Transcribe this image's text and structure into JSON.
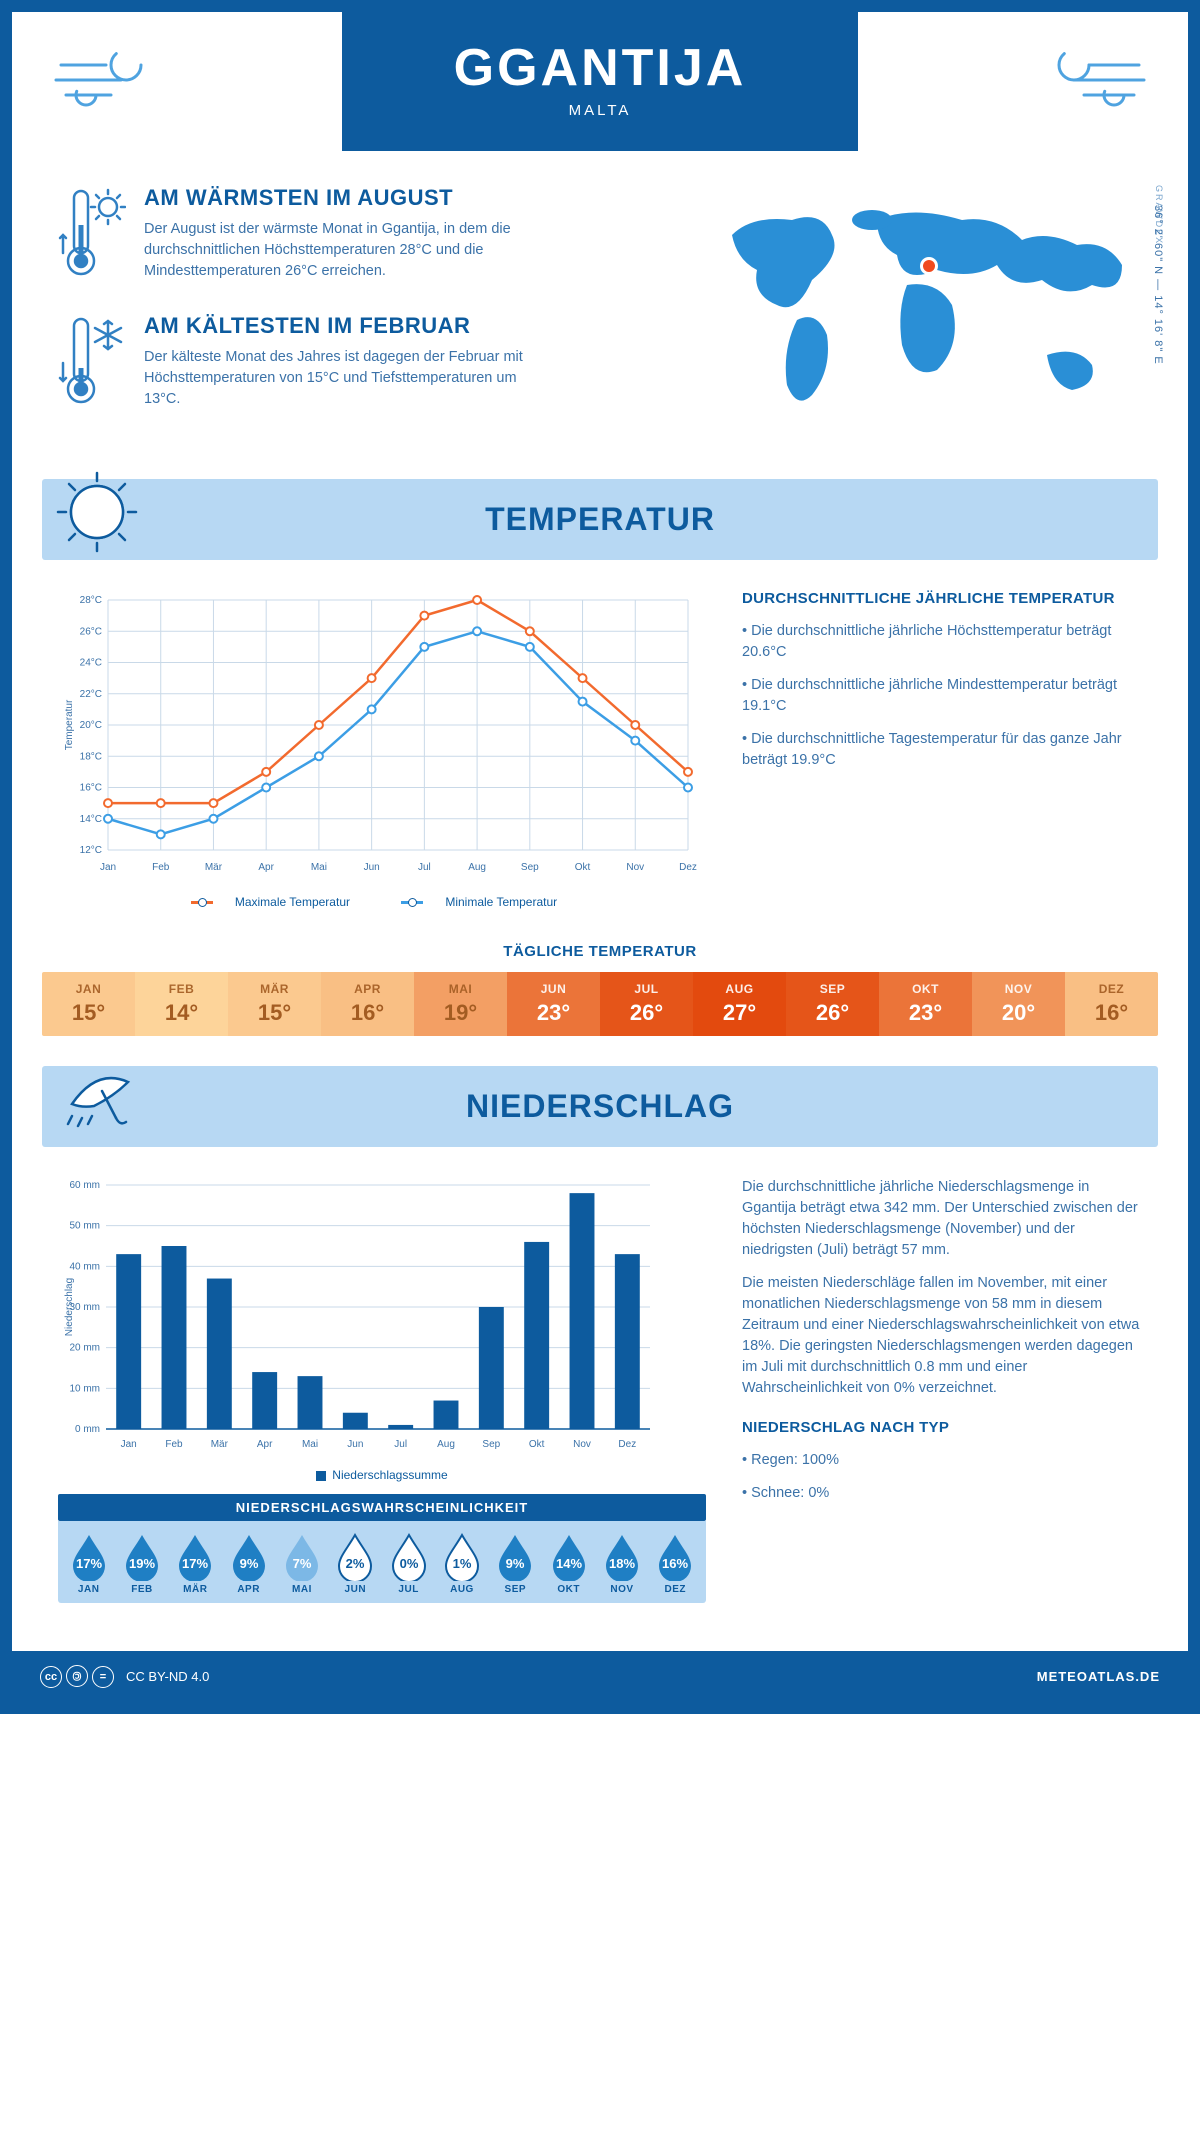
{
  "header": {
    "title": "GGANTIJA",
    "subtitle": "MALTA"
  },
  "coords": "36° 2' 60\" N — 14° 16' 8\" E",
  "grawdex": "GRAWDEX",
  "facts": {
    "warmest": {
      "title": "AM WÄRMSTEN IM AUGUST",
      "text": "Der August ist der wärmste Monat in Ggantija, in dem die durchschnittlichen Höchsttemperaturen 28°C und die Mindesttemperaturen 26°C erreichen."
    },
    "coldest": {
      "title": "AM KÄLTESTEN IM FEBRUAR",
      "text": "Der kälteste Monat des Jahres ist dagegen der Februar mit Höchsttemperaturen von 15°C und Tiefsttemperaturen um 13°C."
    }
  },
  "sections": {
    "temp": "TEMPERATUR",
    "precip": "NIEDERSCHLAG"
  },
  "months": [
    "Jan",
    "Feb",
    "Mär",
    "Apr",
    "Mai",
    "Jun",
    "Jul",
    "Aug",
    "Sep",
    "Okt",
    "Nov",
    "Dez"
  ],
  "months_upper": [
    "JAN",
    "FEB",
    "MÄR",
    "APR",
    "MAI",
    "JUN",
    "JUL",
    "AUG",
    "SEP",
    "OKT",
    "NOV",
    "DEZ"
  ],
  "temp_chart": {
    "type": "line",
    "ylabel": "Temperatur",
    "ylim": [
      12,
      28
    ],
    "ytick_step": 2,
    "series": {
      "max": {
        "label": "Maximale Temperatur",
        "color": "#f26a2e",
        "data": [
          15,
          15,
          15,
          17,
          20,
          23,
          27,
          28,
          26,
          23,
          20,
          17
        ]
      },
      "min": {
        "label": "Minimale Temperatur",
        "color": "#3c9ee5",
        "data": [
          14,
          13,
          14,
          16,
          18,
          21,
          25,
          26,
          25,
          21.5,
          19,
          16
        ]
      }
    },
    "grid_color": "#c9d9e8",
    "axis_color": "#0d5b9e"
  },
  "temp_info": {
    "heading": "DURCHSCHNITTLICHE JÄHRLICHE TEMPERATUR",
    "bullets": [
      "• Die durchschnittliche jährliche Höchsttemperatur beträgt 20.6°C",
      "• Die durchschnittliche jährliche Mindesttemperatur beträgt 19.1°C",
      "• Die durchschnittliche Tagestemperatur für das ganze Jahr beträgt 19.9°C"
    ]
  },
  "daily": {
    "title": "TÄGLICHE TEMPERATUR",
    "values": [
      15,
      14,
      15,
      16,
      19,
      23,
      26,
      27,
      26,
      23,
      20,
      16
    ],
    "min": 14,
    "max": 27,
    "color_low": "#fdd49a",
    "color_high": "#e34a0e",
    "text_color_light": "#a35c22",
    "text_color_dark": "#ffffff"
  },
  "precip_chart": {
    "type": "bar",
    "ylabel": "Niederschlag",
    "ylim": [
      0,
      60
    ],
    "ytick_step": 10,
    "legend": "Niederschlagssumme",
    "color": "#0d5b9e",
    "grid_color": "#c9d9e8",
    "data": [
      43,
      45,
      37,
      14,
      13,
      4,
      1,
      7,
      30,
      46,
      58,
      43
    ]
  },
  "precip_info": {
    "p1": "Die durchschnittliche jährliche Niederschlagsmenge in Ggantija beträgt etwa 342 mm. Der Unterschied zwischen der höchsten Niederschlagsmenge (November) und der niedrigsten (Juli) beträgt 57 mm.",
    "p2": "Die meisten Niederschläge fallen im November, mit einer monatlichen Niederschlagsmenge von 58 mm in diesem Zeitraum und einer Niederschlagswahrscheinlichkeit von etwa 18%. Die geringsten Niederschlagsmengen werden dagegen im Juli mit durchschnittlich 0.8 mm und einer Wahrscheinlichkeit von 0% verzeichnet.",
    "type_heading": "NIEDERSCHLAG NACH TYP",
    "type_bullets": [
      "• Regen: 100%",
      "• Schnee: 0%"
    ]
  },
  "prob": {
    "title": "NIEDERSCHLAGSWAHRSCHEINLICHKEIT",
    "values": [
      17,
      19,
      17,
      9,
      7,
      2,
      0,
      1,
      9,
      14,
      18,
      16
    ],
    "color_full": "#1f7fc4",
    "color_empty": "#ffffff",
    "text_dark": "#0d5b9e",
    "text_light": "#ffffff"
  },
  "footer": {
    "license": "CC BY-ND 4.0",
    "site": "METEOATLAS.DE"
  }
}
